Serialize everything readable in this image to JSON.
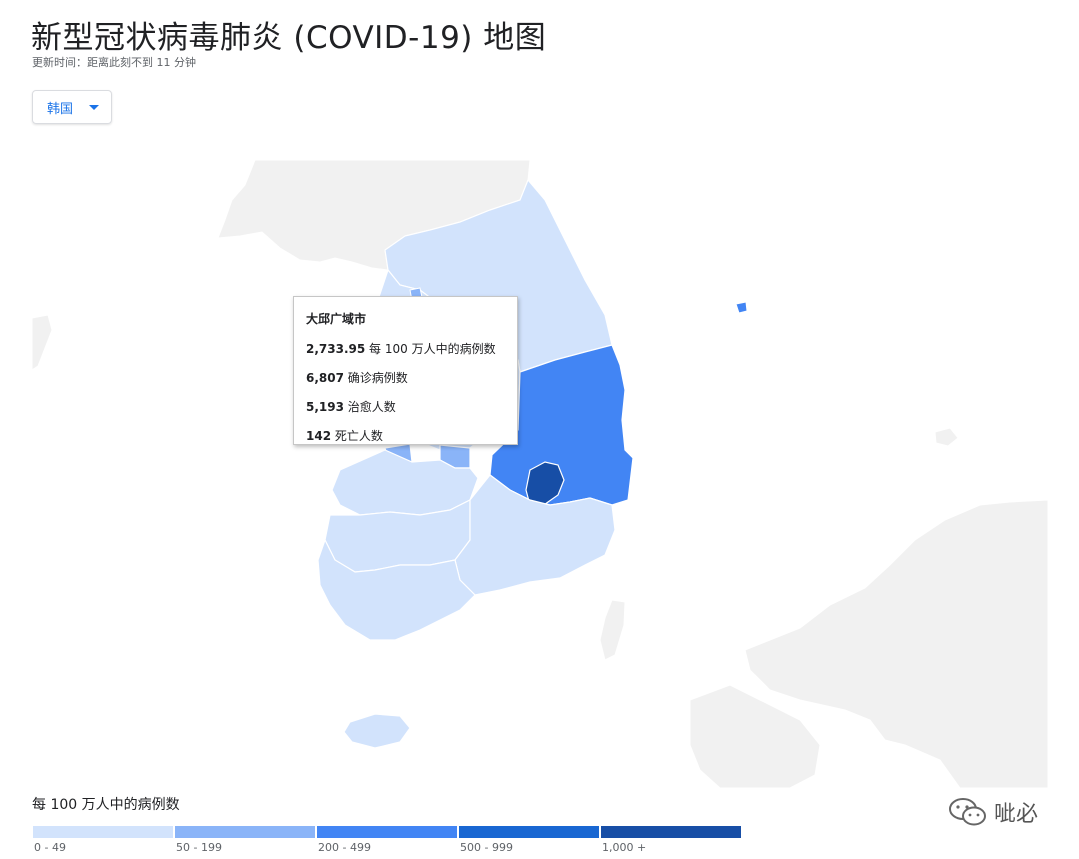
{
  "header": {
    "title": "新型冠状病毒肺炎 (COVID-19) 地图",
    "updated": "更新时间：距离此刻不到 11 分钟"
  },
  "region_selector": {
    "selected": "韩国"
  },
  "tooltip": {
    "region": "大邱广域市",
    "rows": [
      {
        "value": "2,733.95",
        "label": "每 100 万人中的病例数"
      },
      {
        "value": "6,807",
        "label": "确诊病例数"
      },
      {
        "value": "5,193",
        "label": "治愈人数"
      },
      {
        "value": "142",
        "label": "死亡人数"
      }
    ]
  },
  "legend": {
    "title": "每 100 万人中的病例数",
    "bins": [
      {
        "label": "0 - 49",
        "color": "#d2e3fc"
      },
      {
        "label": "50 - 199",
        "color": "#8ab4f8"
      },
      {
        "label": "200 - 499",
        "color": "#4285f4"
      },
      {
        "label": "500 - 999",
        "color": "#1967d2"
      },
      {
        "label": "1,000 +",
        "color": "#174ea6"
      }
    ]
  },
  "map": {
    "land_color": "#f1f1f1",
    "border_color": "#ffffff",
    "highlighted_region": "大邱广域市"
  },
  "watermark": {
    "text": "呲必",
    "icon": "wechat-icon"
  }
}
